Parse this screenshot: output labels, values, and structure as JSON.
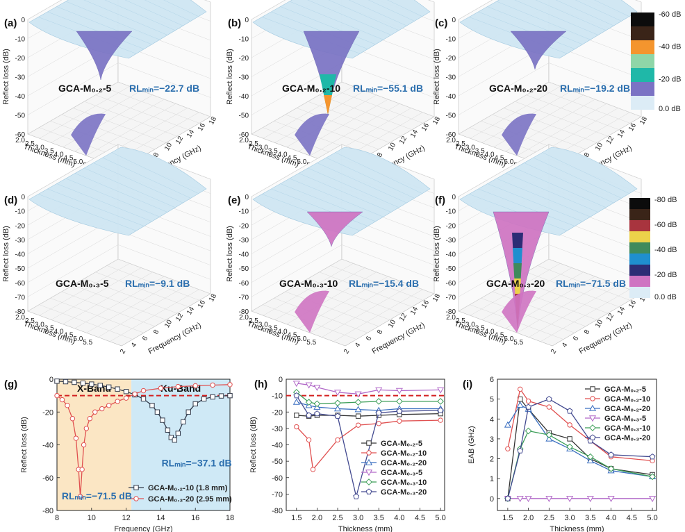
{
  "surface_common": {
    "ylabel": "Reflect loss (dB)",
    "thickness_label": "Thickness (mm)",
    "frequency_label": "Frequency (GHz)",
    "thickness_ticks": [
      "2.0",
      "2.5",
      "3.0",
      "3.5",
      "4.0",
      "4.5",
      "5.0",
      "5.5"
    ],
    "frequency_ticks": [
      "2",
      "4",
      "6",
      "8",
      "10",
      "12",
      "14",
      "16",
      "18"
    ],
    "z_ticks_row1": [
      "0",
      "-10",
      "-20",
      "-30",
      "-40",
      "-50",
      "-60"
    ],
    "z_ticks_row2": [
      "0",
      "-10",
      "-20",
      "-30",
      "-40",
      "-50",
      "-60",
      "-70",
      "-80"
    ]
  },
  "colors": {
    "surface_light": "#cfe6f3",
    "band_purple": "#7b73c4",
    "band_teal": "#1fb8a8",
    "band_orange": "#f4952e",
    "magenta": "#cf74c2",
    "rl_text": "#2c6fae",
    "red_dash": "#d42020"
  },
  "colorbar1": {
    "labels": [
      "-60 dB",
      "-40 dB",
      "-20 dB",
      "0.0 dB"
    ],
    "colors": [
      "#0c0c0c",
      "#3a2418",
      "#f4952e",
      "#8fd6a8",
      "#1fb8a8",
      "#7b73c4",
      "#dcecf6"
    ]
  },
  "colorbar2": {
    "labels": [
      "-80 dB",
      "-60 dB",
      "-40 dB",
      "-20 dB",
      "0.0 dB"
    ],
    "colors": [
      "#0c0c0c",
      "#3a2418",
      "#a8343e",
      "#ecd24a",
      "#3f8a5c",
      "#1f8fcf",
      "#2d2d75",
      "#cf74c2",
      "#dcecf6"
    ]
  },
  "surface_panels": [
    {
      "label": "(a)",
      "sample": "GCA-M₀.₂-5",
      "rl": "RLₘᵢₙ=−22.7 dB"
    },
    {
      "label": "(b)",
      "sample": "GCA-M₀.₂-10",
      "rl": "RLₘᵢₙ=−55.1 dB"
    },
    {
      "label": "(c)",
      "sample": "GCA-M₀.₂-20",
      "rl": "RLₘᵢₙ=−19.2 dB"
    },
    {
      "label": "(d)",
      "sample": "GCA-M₀.₃-5",
      "rl": "RLₘᵢₙ=−9.1 dB"
    },
    {
      "label": "(e)",
      "sample": "GCA-M₀.₃-10",
      "rl": "RLₘᵢₙ=−15.4 dB"
    },
    {
      "label": "(f)",
      "sample": "GCA-M₀.₃-20",
      "rl": "RLₘᵢₙ=−71.5 dB"
    }
  ],
  "chart_data": [
    {
      "panel": "(a)",
      "type": "surface3d",
      "title": "GCA-M0.2-5",
      "xlabel": "Thickness (mm)",
      "ylabel": "Frequency (GHz)",
      "zlabel": "Reflect loss (dB)",
      "xlim": [
        2.0,
        5.5
      ],
      "ylim": [
        2,
        18
      ],
      "zlim": [
        -60,
        0
      ],
      "rl_min": -22.7
    },
    {
      "panel": "(b)",
      "type": "surface3d",
      "title": "GCA-M0.2-10",
      "xlabel": "Thickness (mm)",
      "ylabel": "Frequency (GHz)",
      "zlabel": "Reflect loss (dB)",
      "xlim": [
        2.0,
        5.5
      ],
      "ylim": [
        2,
        18
      ],
      "zlim": [
        -60,
        0
      ],
      "rl_min": -55.1
    },
    {
      "panel": "(c)",
      "type": "surface3d",
      "title": "GCA-M0.2-20",
      "xlabel": "Thickness (mm)",
      "ylabel": "Frequency (GHz)",
      "zlabel": "Reflect loss (dB)",
      "xlim": [
        2.0,
        5.5
      ],
      "ylim": [
        2,
        18
      ],
      "zlim": [
        -60,
        0
      ],
      "rl_min": -19.2
    },
    {
      "panel": "(d)",
      "type": "surface3d",
      "title": "GCA-M0.3-5",
      "xlabel": "Thickness (mm)",
      "ylabel": "Frequency (GHz)",
      "zlabel": "Reflect loss (dB)",
      "xlim": [
        2.0,
        5.5
      ],
      "ylim": [
        2,
        18
      ],
      "zlim": [
        -80,
        0
      ],
      "rl_min": -9.1
    },
    {
      "panel": "(e)",
      "type": "surface3d",
      "title": "GCA-M0.3-10",
      "xlabel": "Thickness (mm)",
      "ylabel": "Frequency (GHz)",
      "zlabel": "Reflect loss (dB)",
      "xlim": [
        2.0,
        5.5
      ],
      "ylim": [
        2,
        18
      ],
      "zlim": [
        -80,
        0
      ],
      "rl_min": -15.4
    },
    {
      "panel": "(f)",
      "type": "surface3d",
      "title": "GCA-M0.3-20",
      "xlabel": "Thickness (mm)",
      "ylabel": "Frequency (GHz)",
      "zlabel": "Reflect loss (dB)",
      "xlim": [
        2.0,
        5.5
      ],
      "ylim": [
        2,
        18
      ],
      "zlim": [
        -80,
        0
      ],
      "rl_min": -71.5
    },
    {
      "panel": "(g)",
      "type": "line",
      "xlabel": "Frequency (GHz)",
      "ylabel": "Reflect loss (dB)",
      "xlim": [
        8,
        18
      ],
      "ylim": [
        -80,
        0
      ],
      "xticks": [
        8,
        10,
        12,
        14,
        16,
        18
      ],
      "yticks": [
        0,
        -20,
        -40,
        -60,
        -80
      ],
      "reference_line": -10,
      "bands": [
        {
          "name": "X-Band",
          "from": 8,
          "to": 12.3,
          "color": "#fbe6c4"
        },
        {
          "name": "Ku-Band",
          "from": 12.3,
          "to": 18,
          "color": "#cfe9f6"
        }
      ],
      "annotations": [
        "RLₘᵢₙ=−37.1 dB",
        "RLₘᵢₙ=−71.5 dB"
      ],
      "series": [
        {
          "name": "GCA-M₀.₂-10 (1.8 mm)",
          "color": "#333a4a",
          "marker": "square",
          "x": [
            8,
            8.5,
            9,
            9.5,
            10,
            10.5,
            11,
            11.5,
            12,
            12.5,
            13,
            13.5,
            13.8,
            14.1,
            14.4,
            14.6,
            14.8,
            15.0,
            15.3,
            15.6,
            16,
            16.5,
            17,
            17.5,
            18
          ],
          "y": [
            -1.2,
            -1.5,
            -1.9,
            -2.4,
            -3.0,
            -3.8,
            -4.8,
            -6.0,
            -7.5,
            -9.5,
            -12,
            -16,
            -20,
            -25,
            -31,
            -35.5,
            -37.1,
            -33,
            -26,
            -20,
            -15,
            -12,
            -10.8,
            -10.2,
            -10
          ]
        },
        {
          "name": "GCA-M₀.₃-20 (2.95 mm)",
          "color": "#e05050",
          "marker": "circle",
          "x": [
            8,
            8.3,
            8.6,
            8.9,
            9.1,
            9.25,
            9.35,
            9.45,
            9.55,
            9.7,
            9.9,
            10.2,
            10.6,
            11,
            11.5,
            12,
            12.5,
            13,
            14,
            15,
            16,
            17,
            18
          ],
          "y": [
            -10,
            -12.5,
            -16,
            -24,
            -36,
            -55,
            -71.5,
            -55,
            -40,
            -30,
            -24,
            -20,
            -18,
            -16,
            -13.5,
            -11.5,
            -9,
            -7,
            -5.5,
            -4.5,
            -4,
            -3.6,
            -3.3
          ]
        }
      ]
    },
    {
      "panel": "(h)",
      "type": "line",
      "xlabel": "Thickness (mm)",
      "ylabel": "Reflect loss (dB)",
      "xlim": [
        1.25,
        5.1
      ],
      "ylim": [
        -80,
        0
      ],
      "xticks": [
        1.5,
        2.0,
        2.5,
        3.0,
        3.5,
        4.0,
        4.5,
        5.0
      ],
      "yticks": [
        0,
        -10,
        -20,
        -30,
        -40,
        -50,
        -60,
        -70,
        -80
      ],
      "reference_line": -10,
      "series": [
        {
          "name": "GCA-M₀.₂-5",
          "color": "#333333",
          "marker": "square",
          "x": [
            1.5,
            1.8,
            2.0,
            2.5,
            3.0,
            3.5,
            4.0,
            5.0
          ],
          "y": [
            -22,
            -22.5,
            -22,
            -22,
            -22.5,
            -22,
            -21.5,
            -21
          ]
        },
        {
          "name": "GCA-M₀.₂-10",
          "color": "#e05050",
          "marker": "circle",
          "x": [
            1.5,
            1.8,
            1.9,
            2.5,
            3.0,
            3.5,
            4.0,
            5.0
          ],
          "y": [
            -29,
            -37,
            -55,
            -37,
            -28,
            -27,
            -25.5,
            -25
          ]
        },
        {
          "name": "GCA-M₀.₂-20",
          "color": "#3a6fc0",
          "marker": "triangle",
          "x": [
            1.5,
            1.8,
            2.0,
            2.5,
            3.0,
            3.5,
            4.0,
            5.0
          ],
          "y": [
            -14,
            -16,
            -17,
            -18,
            -18.5,
            -19,
            -18,
            -18
          ]
        },
        {
          "name": "GCA-M₀.₃-5",
          "color": "#b168c8",
          "marker": "triangle-down",
          "x": [
            1.5,
            1.8,
            2.0,
            2.5,
            3.0,
            3.5,
            4.0,
            5.0
          ],
          "y": [
            -2.5,
            -3.5,
            -5,
            -8,
            -9,
            -6.5,
            -7,
            -6.5
          ]
        },
        {
          "name": "GCA-M₀.₃-10",
          "color": "#3c9e58",
          "marker": "diamond",
          "x": [
            1.5,
            1.8,
            2.0,
            2.5,
            3.0,
            3.5,
            4.0,
            5.0
          ],
          "y": [
            -8,
            -14,
            -15,
            -14.5,
            -14,
            -13.5,
            -13.5,
            -13.5
          ]
        },
        {
          "name": "GCA-M₀.₃-20",
          "color": "#434a90",
          "marker": "pentagon",
          "x": [
            1.5,
            1.8,
            2.0,
            2.5,
            2.95,
            3.5,
            4.0,
            5.0
          ],
          "y": [
            -10,
            -22,
            -21,
            -22.5,
            -71.5,
            -20.5,
            -19.5,
            -19
          ]
        }
      ]
    },
    {
      "panel": "(i)",
      "type": "line",
      "xlabel": "Thickness (mm)",
      "ylabel": "EAB (GHz)",
      "xlim": [
        1.25,
        5.1
      ],
      "ylim": [
        -0.6,
        6
      ],
      "xticks": [
        1.5,
        2.0,
        2.5,
        3.0,
        3.5,
        4.0,
        4.5,
        5.0
      ],
      "yticks": [
        0,
        1,
        2,
        3,
        4,
        5,
        6
      ],
      "series": [
        {
          "name": "GCA-M₀.₂-5",
          "color": "#333333",
          "marker": "square",
          "x": [
            1.5,
            1.8,
            2.0,
            2.5,
            3.0,
            3.5,
            4.0,
            5.0
          ],
          "y": [
            0,
            5.0,
            4.5,
            3.3,
            3.0,
            2.0,
            1.5,
            1.2
          ]
        },
        {
          "name": "GCA-M₀.₂-10",
          "color": "#e05050",
          "marker": "circle",
          "x": [
            1.5,
            1.8,
            2.0,
            2.5,
            3.0,
            3.5,
            4.0,
            5.0
          ],
          "y": [
            2.5,
            5.5,
            4.9,
            4.6,
            3.7,
            2.9,
            2.1,
            1.9
          ]
        },
        {
          "name": "GCA-M₀.₂-20",
          "color": "#3a6fc0",
          "marker": "triangle",
          "x": [
            1.5,
            1.8,
            2.0,
            2.5,
            3.0,
            3.5,
            4.0,
            5.0
          ],
          "y": [
            3.7,
            4.7,
            4.5,
            3.0,
            2.5,
            1.9,
            1.4,
            1.1
          ]
        },
        {
          "name": "GCA-M₀.₃-5",
          "color": "#b168c8",
          "marker": "triangle-down",
          "x": [
            1.5,
            1.8,
            2.0,
            2.5,
            3.0,
            3.5,
            4.0,
            5.0
          ],
          "y": [
            0,
            0,
            0,
            0,
            0,
            0,
            0,
            0
          ]
        },
        {
          "name": "GCA-M₀.₃-10",
          "color": "#3c9e58",
          "marker": "diamond",
          "x": [
            1.5,
            1.8,
            2.0,
            2.5,
            3.0,
            3.5,
            4.0,
            5.0
          ],
          "y": [
            0,
            2.5,
            3.4,
            3.2,
            2.6,
            2.1,
            1.5,
            1.1
          ]
        },
        {
          "name": "GCA-M₀.₃-20",
          "color": "#434a90",
          "marker": "pentagon",
          "x": [
            1.5,
            1.8,
            2.0,
            2.5,
            3.0,
            3.5,
            4.0,
            5.0
          ],
          "y": [
            0,
            2.4,
            4.6,
            5.0,
            4.4,
            2.9,
            2.2,
            2.1
          ]
        }
      ]
    }
  ]
}
